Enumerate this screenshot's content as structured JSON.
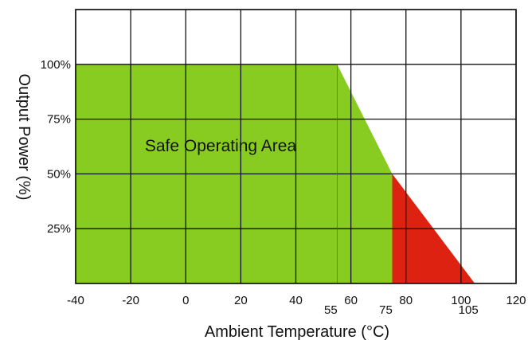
{
  "chart_data": {
    "type": "area",
    "title": "",
    "xlabel": "Ambient Temperature (°C)",
    "ylabel": "Output Power (%)",
    "xlim": [
      -40,
      120
    ],
    "ylim": [
      0,
      125
    ],
    "grid": true,
    "x_ticks": [
      -40,
      -20,
      0,
      20,
      40,
      60,
      80,
      100,
      120
    ],
    "x_tick_labels": [
      "-40",
      "-20",
      "0",
      "20",
      "40",
      "60",
      "80",
      "100",
      "120"
    ],
    "x_marked_points": [
      {
        "x": 55,
        "label": "55"
      },
      {
        "x": 75,
        "label": "75"
      },
      {
        "x": 105,
        "label": "105"
      }
    ],
    "y_ticks": [
      25,
      50,
      75,
      100
    ],
    "y_tick_labels": [
      "25%",
      "50%",
      "75%",
      "100%"
    ],
    "regions": [
      {
        "label": "Safe Operating Area",
        "color": "#88cc22",
        "points": [
          [
            -40,
            0
          ],
          [
            -40,
            100
          ],
          [
            55,
            100
          ],
          [
            75,
            50
          ],
          [
            75,
            0
          ]
        ]
      },
      {
        "label": "",
        "color": "#dd2211",
        "points": [
          [
            75,
            0
          ],
          [
            75,
            50
          ],
          [
            105,
            0
          ]
        ]
      }
    ]
  }
}
